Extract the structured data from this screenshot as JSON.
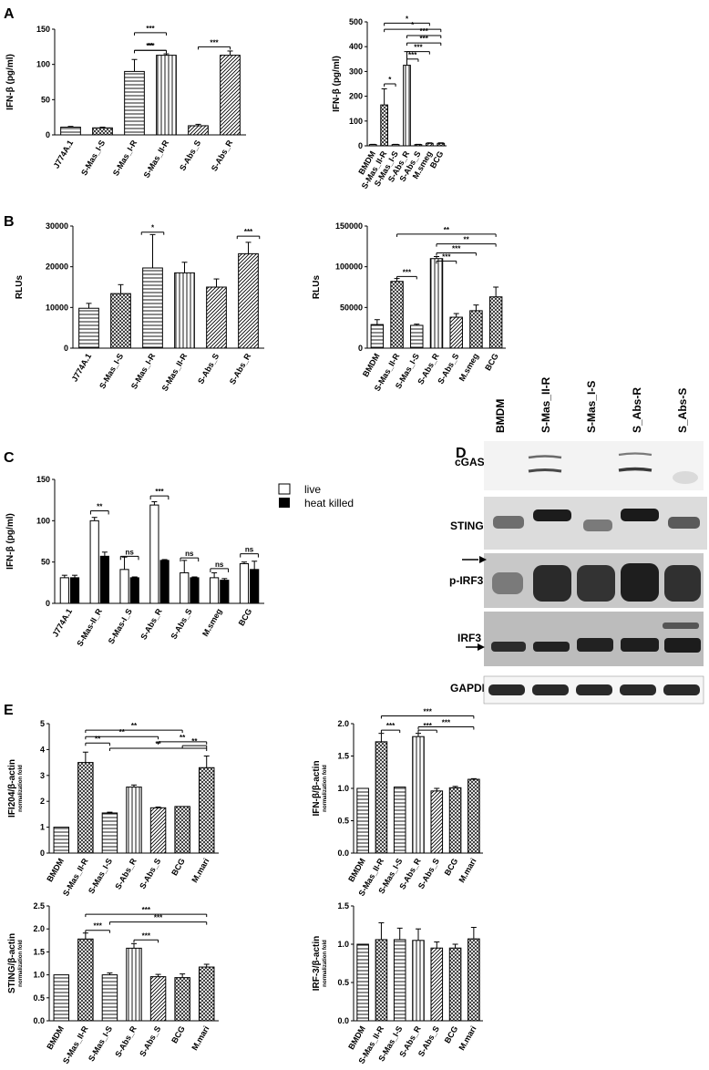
{
  "panels": {
    "A": "A",
    "B": "B",
    "C": "C",
    "D": "D",
    "E": "E"
  },
  "western_blot": {
    "lanes": [
      "BMDM",
      "S-Mas_II-R",
      "S-Mas_I-S",
      "S_Abs-R",
      "S_Abs-S"
    ],
    "proteins": [
      "cGAS",
      "STING",
      "p-IRF3",
      "IRF3",
      "GAPDH"
    ]
  },
  "colors": {
    "bar_fill": "#ffffff",
    "bar_stroke": "#000000",
    "heat_killed": "#000000"
  },
  "chart_data": [
    {
      "id": "A-left",
      "type": "bar",
      "ylabel": "IFN-β (pg/ml)",
      "ylim": [
        0,
        150
      ],
      "yticks": [
        0,
        50,
        100,
        150
      ],
      "categories": [
        "J774A.1",
        "S-Mas_I-S",
        "S-Mas_I-R",
        "S-Mas_II-R",
        "S-Abs_S",
        "S-Abs_R"
      ],
      "values": [
        11,
        10,
        90,
        113,
        13,
        113
      ],
      "errors": [
        1,
        1,
        17,
        2,
        2,
        6
      ],
      "patterns": [
        "horiz",
        "checker",
        "horiz",
        "vert",
        "diag",
        "diag"
      ],
      "brackets": [
        {
          "from": 2,
          "to": 3,
          "label": "***",
          "y": 145
        },
        {
          "from": 2,
          "to": 3,
          "label": "***",
          "y": 120
        },
        {
          "from": 2,
          "to": 3,
          "label": "**",
          "y": 120
        },
        {
          "from": 4,
          "to": 5,
          "label": "***",
          "y": 125
        }
      ]
    },
    {
      "id": "A-right",
      "type": "bar",
      "ylabel": "IFN-β (pg/ml)",
      "ylim": [
        0,
        500
      ],
      "yticks": [
        0,
        100,
        200,
        300,
        400,
        500
      ],
      "categories": [
        "BMDM",
        "S-Mas_II-R",
        "S-Mas_I-S",
        "S-Abs_R",
        "S-Abs_S",
        "M.smeg",
        "BCG"
      ],
      "values": [
        5,
        165,
        5,
        325,
        5,
        10,
        10
      ],
      "errors": [
        1,
        65,
        1,
        55,
        1,
        2,
        2
      ],
      "patterns": [
        "horiz",
        "checker",
        "horiz",
        "vert",
        "diag",
        "diag",
        "checker"
      ],
      "brackets": [
        {
          "from": 1,
          "to": 5,
          "label": "*",
          "y": 495
        },
        {
          "from": 1,
          "to": 6,
          "label": "*",
          "y": 470
        },
        {
          "from": 3,
          "to": 6,
          "label": "***",
          "y": 445
        },
        {
          "from": 3,
          "to": 6,
          "label": "***",
          "y": 415
        },
        {
          "from": 3,
          "to": 5,
          "label": "***",
          "y": 380
        },
        {
          "from": 3,
          "to": 4,
          "label": "***",
          "y": 350
        },
        {
          "from": 1,
          "to": 2,
          "label": "*",
          "y": 250
        }
      ]
    },
    {
      "id": "B-left",
      "type": "bar",
      "ylabel": "RLUs",
      "ylim": [
        0,
        30000
      ],
      "yticks": [
        0,
        10000,
        20000,
        30000
      ],
      "categories": [
        "J774A.1",
        "S-Mas_I-S",
        "S-Mas_I-R",
        "S-Mas_II-R",
        "S-Abs_S",
        "S-Abs_R"
      ],
      "values": [
        9800,
        13400,
        19700,
        18500,
        15000,
        23200
      ],
      "errors": [
        1200,
        2200,
        8200,
        2600,
        2000,
        2800
      ],
      "patterns": [
        "horiz",
        "checker",
        "horiz",
        "vert",
        "diag",
        "diag"
      ],
      "brackets": [
        {
          "from": 2,
          "to": 2,
          "label": "*",
          "y": 28500
        },
        {
          "from": 5,
          "to": 5,
          "label": "***",
          "y": 27500
        }
      ]
    },
    {
      "id": "B-right",
      "type": "bar",
      "ylabel": "RLUs",
      "ylim": [
        0,
        150000
      ],
      "yticks": [
        0,
        50000,
        100000,
        150000
      ],
      "categories": [
        "BMDM",
        "S-Mas_II-R",
        "S-Mas_I-S",
        "S-Abs_R",
        "S-Abs_S",
        "M.smeg",
        "BCG"
      ],
      "values": [
        29000,
        82000,
        28000,
        110000,
        38000,
        46000,
        63000
      ],
      "errors": [
        6000,
        3500,
        1500,
        2500,
        4500,
        7000,
        12000
      ],
      "patterns": [
        "horiz",
        "checker",
        "horiz",
        "vert",
        "diag",
        "checker",
        "checker"
      ],
      "brackets": [
        {
          "from": 1,
          "to": 6,
          "label": "**",
          "y": 140000
        },
        {
          "from": 3,
          "to": 6,
          "label": "**",
          "y": 128000
        },
        {
          "from": 3,
          "to": 5,
          "label": "***",
          "y": 117000
        },
        {
          "from": 3,
          "to": 4,
          "label": "***",
          "y": 107000
        },
        {
          "from": 1,
          "to": 2,
          "label": "***",
          "y": 88000
        }
      ]
    },
    {
      "id": "C",
      "type": "bar",
      "ylabel": "IFN-β (pg/ml)",
      "ylim": [
        0,
        150
      ],
      "yticks": [
        0,
        50,
        100,
        150
      ],
      "categories": [
        "J774A.1",
        "S-Mas-II_R",
        "S-Mas-I_S",
        "S-Abs_R",
        "S-Abs_S",
        "M.smeg",
        "BCG"
      ],
      "series": [
        {
          "name": "live",
          "values": [
            31,
            100,
            41,
            119,
            37,
            31,
            48
          ],
          "errors": [
            3,
            4,
            15,
            4,
            15,
            6,
            2
          ]
        },
        {
          "name": "heat killed",
          "values": [
            31,
            57,
            31,
            52,
            31,
            28,
            41
          ],
          "errors": [
            3,
            5,
            1,
            1,
            1,
            2,
            10
          ]
        }
      ],
      "brackets": [
        {
          "index": 1,
          "label": "**",
          "y": 112
        },
        {
          "index": 2,
          "label": "ns",
          "y": 57
        },
        {
          "index": 3,
          "label": "***",
          "y": 130
        },
        {
          "index": 4,
          "label": "ns",
          "y": 55
        },
        {
          "index": 5,
          "label": "ns",
          "y": 42
        },
        {
          "index": 6,
          "label": "ns",
          "y": 60
        }
      ]
    },
    {
      "id": "E-tl",
      "type": "bar",
      "ylabel": "IFI204/β-actin",
      "ylabel_sub": "normalization fold",
      "ylim": [
        0,
        5
      ],
      "yticks": [
        0,
        1,
        2,
        3,
        4,
        5
      ],
      "categories": [
        "BMDM",
        "S-Mas_II-R",
        "S-Mas_I-S",
        "S-Abs_R",
        "S-Abs_S",
        "BCG",
        "M.mari"
      ],
      "values": [
        1.0,
        3.5,
        1.55,
        2.55,
        1.75,
        1.8,
        3.3
      ],
      "errors": [
        0,
        0.4,
        0.03,
        0.08,
        0.03,
        0,
        0.45
      ],
      "patterns": [
        "horiz",
        "checker",
        "horiz",
        "vert",
        "diag",
        "checker",
        "checker"
      ],
      "brackets": [
        {
          "from": 1,
          "to": 5,
          "label": "**",
          "y": 4.75
        },
        {
          "from": 1,
          "to": 4,
          "label": "**",
          "y": 4.5
        },
        {
          "from": 1,
          "to": 2,
          "label": "**",
          "y": 4.25
        },
        {
          "from": 2,
          "to": 6,
          "label": "**",
          "y": 4.05
        },
        {
          "from": 4,
          "to": 6,
          "label": "**",
          "y": 4.3
        },
        {
          "from": 5,
          "to": 6,
          "label": "**",
          "y": 4.15
        }
      ]
    },
    {
      "id": "E-tr",
      "type": "bar",
      "ylabel": "IFN-β/β-actin",
      "ylabel_sub": "normalization fold",
      "ylim": [
        0,
        2.0
      ],
      "yticks": [
        0.0,
        0.5,
        1.0,
        1.5,
        2.0
      ],
      "categories": [
        "BMDM",
        "S-Mas_II-R",
        "S-Mas_I-S",
        "S-Abs_R",
        "S-Abs_S",
        "BCG",
        "M.mari"
      ],
      "values": [
        1.0,
        1.72,
        1.02,
        1.8,
        0.96,
        1.01,
        1.14
      ],
      "errors": [
        0,
        0.13,
        0,
        0.05,
        0.04,
        0.02,
        0.01
      ],
      "patterns": [
        "horiz",
        "checker",
        "horiz",
        "vert",
        "diag",
        "checker",
        "checker"
      ],
      "brackets": [
        {
          "from": 1,
          "to": 6,
          "label": "***",
          "y": 2.12
        },
        {
          "from": 3,
          "to": 6,
          "label": "***",
          "y": 1.95
        },
        {
          "from": 3,
          "to": 4,
          "label": "***",
          "y": 1.9
        },
        {
          "from": 1,
          "to": 2,
          "label": "***",
          "y": 1.9
        }
      ]
    },
    {
      "id": "E-bl",
      "type": "bar",
      "ylabel": "STING/β-actin",
      "ylabel_sub": "normalization fold",
      "ylim": [
        0,
        2.5
      ],
      "yticks": [
        0.0,
        0.5,
        1.0,
        1.5,
        2.0,
        2.5
      ],
      "categories": [
        "BMDM",
        "S-Mas_II-R",
        "S-Mas_I-S",
        "S-Abs_R",
        "S-Abs_S",
        "BCG",
        "M.mari"
      ],
      "values": [
        1.0,
        1.78,
        1.0,
        1.58,
        0.96,
        0.94,
        1.17
      ],
      "errors": [
        0,
        0.13,
        0.04,
        0.1,
        0.05,
        0.08,
        0.06
      ],
      "patterns": [
        "horiz",
        "checker",
        "horiz",
        "vert",
        "diag",
        "checker",
        "checker"
      ],
      "brackets": [
        {
          "from": 1,
          "to": 6,
          "label": "***",
          "y": 2.32
        },
        {
          "from": 2,
          "to": 6,
          "label": "***",
          "y": 2.15
        },
        {
          "from": 1,
          "to": 2,
          "label": "***",
          "y": 1.97
        },
        {
          "from": 3,
          "to": 4,
          "label": "***",
          "y": 1.76
        }
      ]
    },
    {
      "id": "E-br",
      "type": "bar",
      "ylabel": "IRF-3/β-actin",
      "ylabel_sub": "normalization fold",
      "ylim": [
        0,
        1.5
      ],
      "yticks": [
        0.0,
        0.5,
        1.0,
        1.5
      ],
      "categories": [
        "BMDM",
        "S-Mas_II-R",
        "S-Mas_I-S",
        "S-Abs_R",
        "S-Abs_S",
        "BCG",
        "M.mari"
      ],
      "values": [
        1.0,
        1.06,
        1.06,
        1.05,
        0.95,
        0.95,
        1.07
      ],
      "errors": [
        0,
        0.22,
        0.15,
        0.15,
        0.08,
        0.05,
        0.15
      ],
      "patterns": [
        "horiz",
        "checker",
        "horiz",
        "vert",
        "diag",
        "checker",
        "checker"
      ],
      "brackets": []
    }
  ]
}
